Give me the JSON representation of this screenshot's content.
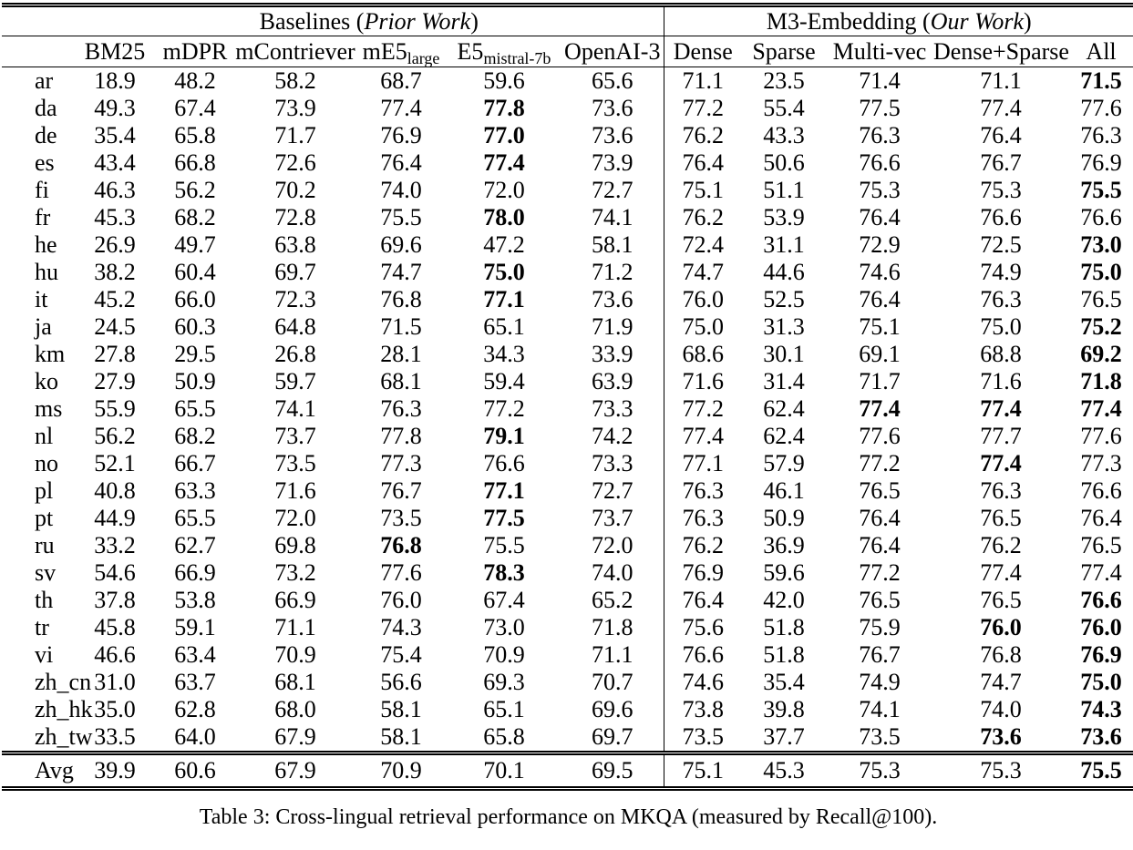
{
  "header": {
    "group_left": {
      "prefix": "Baselines (",
      "italic": "Prior Work",
      "suffix": ")"
    },
    "group_right": {
      "prefix": "M3-Embedding (",
      "italic": "Our Work",
      "suffix": ")"
    },
    "columns": [
      {
        "label": "BM25"
      },
      {
        "label": "mDPR"
      },
      {
        "label": "mContriever"
      },
      {
        "label": "mE5",
        "sub": "large"
      },
      {
        "label": "E5",
        "sub": "mistral-7b"
      },
      {
        "label": "OpenAI-3"
      },
      {
        "label": "Dense"
      },
      {
        "label": "Sparse"
      },
      {
        "label": "Multi-vec"
      },
      {
        "label": "Dense+Sparse"
      },
      {
        "label": "All"
      }
    ]
  },
  "rows": [
    {
      "lang": "ar",
      "values": [
        "18.9",
        "48.2",
        "58.2",
        "68.7",
        "59.6",
        "65.6",
        "71.1",
        "23.5",
        "71.4",
        "71.1",
        "71.5"
      ],
      "bold": [
        10
      ]
    },
    {
      "lang": "da",
      "values": [
        "49.3",
        "67.4",
        "73.9",
        "77.4",
        "77.8",
        "73.6",
        "77.2",
        "55.4",
        "77.5",
        "77.4",
        "77.6"
      ],
      "bold": [
        4
      ]
    },
    {
      "lang": "de",
      "values": [
        "35.4",
        "65.8",
        "71.7",
        "76.9",
        "77.0",
        "73.6",
        "76.2",
        "43.3",
        "76.3",
        "76.4",
        "76.3"
      ],
      "bold": [
        4
      ]
    },
    {
      "lang": "es",
      "values": [
        "43.4",
        "66.8",
        "72.6",
        "76.4",
        "77.4",
        "73.9",
        "76.4",
        "50.6",
        "76.6",
        "76.7",
        "76.9"
      ],
      "bold": [
        4
      ]
    },
    {
      "lang": "fi",
      "values": [
        "46.3",
        "56.2",
        "70.2",
        "74.0",
        "72.0",
        "72.7",
        "75.1",
        "51.1",
        "75.3",
        "75.3",
        "75.5"
      ],
      "bold": [
        10
      ]
    },
    {
      "lang": "fr",
      "values": [
        "45.3",
        "68.2",
        "72.8",
        "75.5",
        "78.0",
        "74.1",
        "76.2",
        "53.9",
        "76.4",
        "76.6",
        "76.6"
      ],
      "bold": [
        4
      ]
    },
    {
      "lang": "he",
      "values": [
        "26.9",
        "49.7",
        "63.8",
        "69.6",
        "47.2",
        "58.1",
        "72.4",
        "31.1",
        "72.9",
        "72.5",
        "73.0"
      ],
      "bold": [
        10
      ]
    },
    {
      "lang": "hu",
      "values": [
        "38.2",
        "60.4",
        "69.7",
        "74.7",
        "75.0",
        "71.2",
        "74.7",
        "44.6",
        "74.6",
        "74.9",
        "75.0"
      ],
      "bold": [
        4,
        10
      ]
    },
    {
      "lang": "it",
      "values": [
        "45.2",
        "66.0",
        "72.3",
        "76.8",
        "77.1",
        "73.6",
        "76.0",
        "52.5",
        "76.4",
        "76.3",
        "76.5"
      ],
      "bold": [
        4
      ]
    },
    {
      "lang": "ja",
      "values": [
        "24.5",
        "60.3",
        "64.8",
        "71.5",
        "65.1",
        "71.9",
        "75.0",
        "31.3",
        "75.1",
        "75.0",
        "75.2"
      ],
      "bold": [
        10
      ]
    },
    {
      "lang": "km",
      "values": [
        "27.8",
        "29.5",
        "26.8",
        "28.1",
        "34.3",
        "33.9",
        "68.6",
        "30.1",
        "69.1",
        "68.8",
        "69.2"
      ],
      "bold": [
        10
      ]
    },
    {
      "lang": "ko",
      "values": [
        "27.9",
        "50.9",
        "59.7",
        "68.1",
        "59.4",
        "63.9",
        "71.6",
        "31.4",
        "71.7",
        "71.6",
        "71.8"
      ],
      "bold": [
        10
      ]
    },
    {
      "lang": "ms",
      "values": [
        "55.9",
        "65.5",
        "74.1",
        "76.3",
        "77.2",
        "73.3",
        "77.2",
        "62.4",
        "77.4",
        "77.4",
        "77.4"
      ],
      "bold": [
        8,
        9,
        10
      ]
    },
    {
      "lang": "nl",
      "values": [
        "56.2",
        "68.2",
        "73.7",
        "77.8",
        "79.1",
        "74.2",
        "77.4",
        "62.4",
        "77.6",
        "77.7",
        "77.6"
      ],
      "bold": [
        4
      ]
    },
    {
      "lang": "no",
      "values": [
        "52.1",
        "66.7",
        "73.5",
        "77.3",
        "76.6",
        "73.3",
        "77.1",
        "57.9",
        "77.2",
        "77.4",
        "77.3"
      ],
      "bold": [
        9
      ]
    },
    {
      "lang": "pl",
      "values": [
        "40.8",
        "63.3",
        "71.6",
        "76.7",
        "77.1",
        "72.7",
        "76.3",
        "46.1",
        "76.5",
        "76.3",
        "76.6"
      ],
      "bold": [
        4
      ]
    },
    {
      "lang": "pt",
      "values": [
        "44.9",
        "65.5",
        "72.0",
        "73.5",
        "77.5",
        "73.7",
        "76.3",
        "50.9",
        "76.4",
        "76.5",
        "76.4"
      ],
      "bold": [
        4
      ]
    },
    {
      "lang": "ru",
      "values": [
        "33.2",
        "62.7",
        "69.8",
        "76.8",
        "75.5",
        "72.0",
        "76.2",
        "36.9",
        "76.4",
        "76.2",
        "76.5"
      ],
      "bold": [
        3
      ]
    },
    {
      "lang": "sv",
      "values": [
        "54.6",
        "66.9",
        "73.2",
        "77.6",
        "78.3",
        "74.0",
        "76.9",
        "59.6",
        "77.2",
        "77.4",
        "77.4"
      ],
      "bold": [
        4
      ]
    },
    {
      "lang": "th",
      "values": [
        "37.8",
        "53.8",
        "66.9",
        "76.0",
        "67.4",
        "65.2",
        "76.4",
        "42.0",
        "76.5",
        "76.5",
        "76.6"
      ],
      "bold": [
        10
      ]
    },
    {
      "lang": "tr",
      "values": [
        "45.8",
        "59.1",
        "71.1",
        "74.3",
        "73.0",
        "71.8",
        "75.6",
        "51.8",
        "75.9",
        "76.0",
        "76.0"
      ],
      "bold": [
        9,
        10
      ]
    },
    {
      "lang": "vi",
      "values": [
        "46.6",
        "63.4",
        "70.9",
        "75.4",
        "70.9",
        "71.1",
        "76.6",
        "51.8",
        "76.7",
        "76.8",
        "76.9"
      ],
      "bold": [
        10
      ]
    },
    {
      "lang": "zh_cn",
      "values": [
        "31.0",
        "63.7",
        "68.1",
        "56.6",
        "69.3",
        "70.7",
        "74.6",
        "35.4",
        "74.9",
        "74.7",
        "75.0"
      ],
      "bold": [
        10
      ]
    },
    {
      "lang": "zh_hk",
      "values": [
        "35.0",
        "62.8",
        "68.0",
        "58.1",
        "65.1",
        "69.6",
        "73.8",
        "39.8",
        "74.1",
        "74.0",
        "74.3"
      ],
      "bold": [
        10
      ]
    },
    {
      "lang": "zh_tw",
      "values": [
        "33.5",
        "64.0",
        "67.9",
        "58.1",
        "65.8",
        "69.7",
        "73.5",
        "37.7",
        "73.5",
        "73.6",
        "73.6"
      ],
      "bold": [
        9,
        10
      ]
    }
  ],
  "avg_row": {
    "lang": "Avg",
    "values": [
      "39.9",
      "60.6",
      "67.9",
      "70.9",
      "70.1",
      "69.5",
      "75.1",
      "45.3",
      "75.3",
      "75.3",
      "75.5"
    ],
    "bold": [
      10
    ]
  },
  "caption": "Table 3: Cross-lingual retrieval performance on MKQA (measured by Recall@100)."
}
